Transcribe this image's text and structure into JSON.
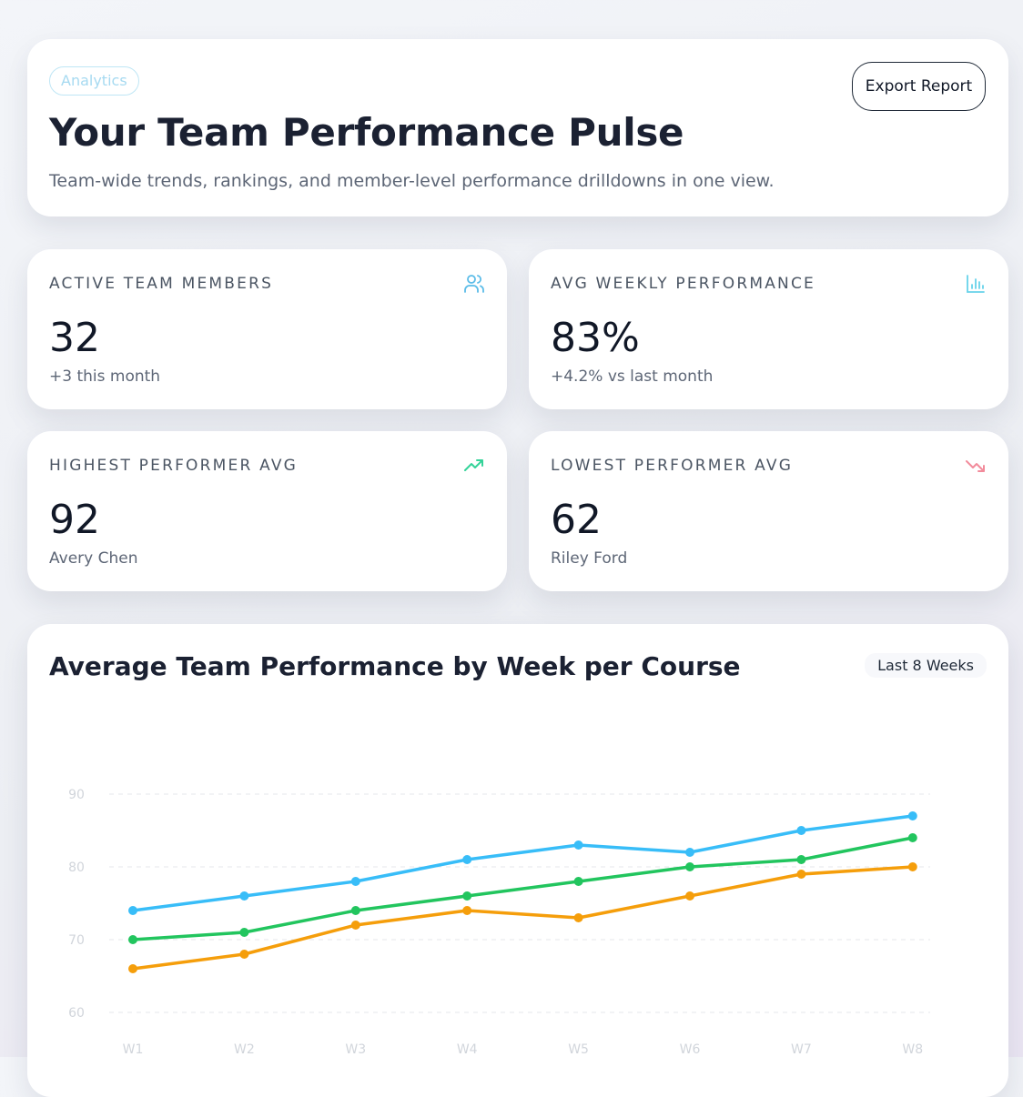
{
  "header": {
    "badge": "Analytics",
    "title": "Your Team Performance Pulse",
    "subtitle": "Team-wide trends, rankings, and member-level performance drilldowns in one view.",
    "export_label": "Export Report"
  },
  "stats": [
    {
      "label": "ACTIVE TEAM MEMBERS",
      "value": "32",
      "note": "+3 this month",
      "icon": "users-icon",
      "color": "#5bbce8"
    },
    {
      "label": "AVG WEEKLY PERFORMANCE",
      "value": "83%",
      "note": "+4.2% vs last month",
      "icon": "bar-chart-icon",
      "color": "#67d3ea"
    },
    {
      "label": "HIGHEST PERFORMER AVG",
      "value": "92",
      "note": "Avery Chen",
      "icon": "trending-up-icon",
      "color": "#34d399"
    },
    {
      "label": "LOWEST PERFORMER AVG",
      "value": "62",
      "note": "Riley Ford",
      "icon": "trending-down-icon",
      "color": "#f28b9b"
    }
  ],
  "chart_card": {
    "title": "Average Team Performance by Week per Course",
    "range_label": "Last 8 Weeks"
  },
  "chart_data": {
    "type": "line",
    "categories": [
      "W1",
      "W2",
      "W3",
      "W4",
      "W5",
      "W6",
      "W7",
      "W8"
    ],
    "yticks": [
      60,
      70,
      80,
      90
    ],
    "ylim": [
      60,
      90
    ],
    "grid": true,
    "series": [
      {
        "color": "#38bdf8",
        "values": [
          74,
          76,
          78,
          81,
          83,
          82,
          85,
          87
        ]
      },
      {
        "color": "#22c55e",
        "values": [
          70,
          71,
          74,
          76,
          78,
          80,
          81,
          84
        ]
      },
      {
        "color": "#f59e0b",
        "values": [
          66,
          68,
          72,
          74,
          73,
          76,
          79,
          80
        ]
      }
    ]
  }
}
